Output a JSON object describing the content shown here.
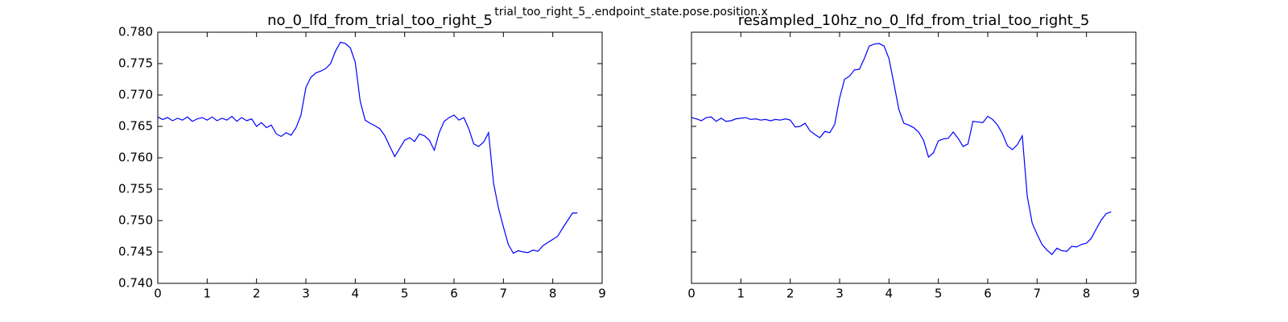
{
  "title": "trial_too_right_5_.endpoint_state.pose.position.x",
  "chart_data": [
    {
      "type": "line",
      "title": "no_0_lfd_from_trial_too_right_5",
      "x": [
        0,
        0.1,
        0.2,
        0.3,
        0.4,
        0.5,
        0.6,
        0.7,
        0.8,
        0.9,
        1.0,
        1.1,
        1.2,
        1.3,
        1.4,
        1.5,
        1.6,
        1.7,
        1.8,
        1.9,
        2.0,
        2.1,
        2.2,
        2.3,
        2.4,
        2.5,
        2.6,
        2.7,
        2.8,
        2.9,
        3.0,
        3.1,
        3.2,
        3.3,
        3.4,
        3.5,
        3.6,
        3.7,
        3.8,
        3.9,
        4.0,
        4.1,
        4.2,
        4.3,
        4.4,
        4.5,
        4.6,
        4.7,
        4.8,
        4.9,
        5.0,
        5.1,
        5.2,
        5.3,
        5.4,
        5.5,
        5.6,
        5.7,
        5.8,
        5.9,
        6.0,
        6.1,
        6.2,
        6.3,
        6.4,
        6.5,
        6.6,
        6.7,
        6.8,
        6.9,
        7.0,
        7.1,
        7.2,
        7.3,
        7.4,
        7.5,
        7.6,
        7.7,
        7.8,
        7.9,
        8.0,
        8.1,
        8.2,
        8.3,
        8.4,
        8.5
      ],
      "series": [
        {
          "color": "#0000ff",
          "values": [
            0.7665,
            0.7661,
            0.7664,
            0.7659,
            0.7663,
            0.766,
            0.7665,
            0.7658,
            0.7662,
            0.7664,
            0.766,
            0.7665,
            0.7659,
            0.7663,
            0.766,
            0.7666,
            0.7658,
            0.7664,
            0.7659,
            0.7662,
            0.765,
            0.7656,
            0.7648,
            0.7652,
            0.7638,
            0.7634,
            0.764,
            0.7636,
            0.7648,
            0.7668,
            0.7712,
            0.7728,
            0.7735,
            0.7738,
            0.7742,
            0.775,
            0.777,
            0.7784,
            0.7782,
            0.7775,
            0.7752,
            0.769,
            0.766,
            0.7655,
            0.7651,
            0.7646,
            0.7635,
            0.7618,
            0.7602,
            0.7615,
            0.7628,
            0.7632,
            0.7626,
            0.7638,
            0.7635,
            0.7628,
            0.7612,
            0.764,
            0.7658,
            0.7664,
            0.7668,
            0.766,
            0.7664,
            0.7646,
            0.7622,
            0.7618,
            0.7625,
            0.764,
            0.756,
            0.752,
            0.749,
            0.7462,
            0.7448,
            0.7452,
            0.745,
            0.7449,
            0.7453,
            0.7451,
            0.746,
            0.7465,
            0.747,
            0.7475,
            0.7488,
            0.75,
            0.7512,
            0.7512
          ]
        }
      ],
      "xlim": [
        0,
        9
      ],
      "xticks": [
        0,
        1,
        2,
        3,
        4,
        5,
        6,
        7,
        8,
        9
      ],
      "ylim": [
        0.74,
        0.78
      ],
      "yticks": [
        {
          "value": 0.74,
          "label": "0.740"
        },
        {
          "value": 0.745,
          "label": "0.745"
        },
        {
          "value": 0.75,
          "label": "0.750"
        },
        {
          "value": 0.755,
          "label": "0.755"
        },
        {
          "value": 0.76,
          "label": "0.760"
        },
        {
          "value": 0.765,
          "label": "0.765"
        },
        {
          "value": 0.77,
          "label": "0.770"
        },
        {
          "value": 0.775,
          "label": "0.775"
        },
        {
          "value": 0.78,
          "label": "0.780"
        }
      ],
      "show_ytick_labels": true
    },
    {
      "type": "line",
      "title": "resampled_10hz_no_0_lfd_from_trial_too_right_5",
      "x": [
        0,
        0.1,
        0.2,
        0.3,
        0.4,
        0.5,
        0.6,
        0.7,
        0.8,
        0.9,
        1.0,
        1.1,
        1.2,
        1.3,
        1.4,
        1.5,
        1.6,
        1.7,
        1.8,
        1.9,
        2.0,
        2.1,
        2.2,
        2.3,
        2.4,
        2.5,
        2.6,
        2.7,
        2.8,
        2.9,
        3.0,
        3.1,
        3.2,
        3.3,
        3.4,
        3.5,
        3.6,
        3.7,
        3.8,
        3.9,
        4.0,
        4.1,
        4.2,
        4.3,
        4.4,
        4.5,
        4.6,
        4.7,
        4.8,
        4.9,
        5.0,
        5.1,
        5.2,
        5.3,
        5.4,
        5.5,
        5.6,
        5.7,
        5.8,
        5.9,
        6.0,
        6.1,
        6.2,
        6.3,
        6.4,
        6.5,
        6.6,
        6.7,
        6.8,
        6.9,
        7.0,
        7.1,
        7.2,
        7.3,
        7.4,
        7.5,
        7.6,
        7.7,
        7.8,
        7.9,
        8.0,
        8.1,
        8.2,
        8.3,
        8.4,
        8.5
      ],
      "series": [
        {
          "color": "#0000ff",
          "values": [
            0.7664,
            0.7662,
            0.7659,
            0.7664,
            0.7665,
            0.7658,
            0.7663,
            0.7658,
            0.7659,
            0.7662,
            0.7663,
            0.7664,
            0.7661,
            0.7662,
            0.766,
            0.7661,
            0.7659,
            0.7661,
            0.766,
            0.7662,
            0.766,
            0.7649,
            0.765,
            0.7655,
            0.7643,
            0.7637,
            0.7632,
            0.7642,
            0.764,
            0.7653,
            0.7695,
            0.7725,
            0.773,
            0.774,
            0.7741,
            0.7758,
            0.7778,
            0.7781,
            0.7782,
            0.7778,
            0.7758,
            0.7718,
            0.7677,
            0.7655,
            0.7652,
            0.7648,
            0.7641,
            0.7628,
            0.7601,
            0.7608,
            0.7627,
            0.763,
            0.7631,
            0.7641,
            0.7631,
            0.7618,
            0.7622,
            0.7658,
            0.7657,
            0.7656,
            0.7666,
            0.7661,
            0.7652,
            0.7638,
            0.7619,
            0.7613,
            0.7621,
            0.7635,
            0.7539,
            0.7496,
            0.7478,
            0.7462,
            0.7453,
            0.7446,
            0.7456,
            0.7452,
            0.7451,
            0.7459,
            0.7458,
            0.7462,
            0.7464,
            0.7472,
            0.7487,
            0.7501,
            0.7511,
            0.7514
          ]
        }
      ],
      "xlim": [
        0,
        9
      ],
      "xticks": [
        0,
        1,
        2,
        3,
        4,
        5,
        6,
        7,
        8,
        9
      ],
      "ylim": [
        0.74,
        0.78
      ],
      "yticks": [
        {
          "value": 0.74,
          "label": "0.740"
        },
        {
          "value": 0.745,
          "label": "0.745"
        },
        {
          "value": 0.75,
          "label": "0.750"
        },
        {
          "value": 0.755,
          "label": "0.755"
        },
        {
          "value": 0.76,
          "label": "0.760"
        },
        {
          "value": 0.765,
          "label": "0.765"
        },
        {
          "value": 0.77,
          "label": "0.770"
        },
        {
          "value": 0.775,
          "label": "0.775"
        },
        {
          "value": 0.78,
          "label": "0.780"
        }
      ],
      "show_ytick_labels": false
    }
  ]
}
